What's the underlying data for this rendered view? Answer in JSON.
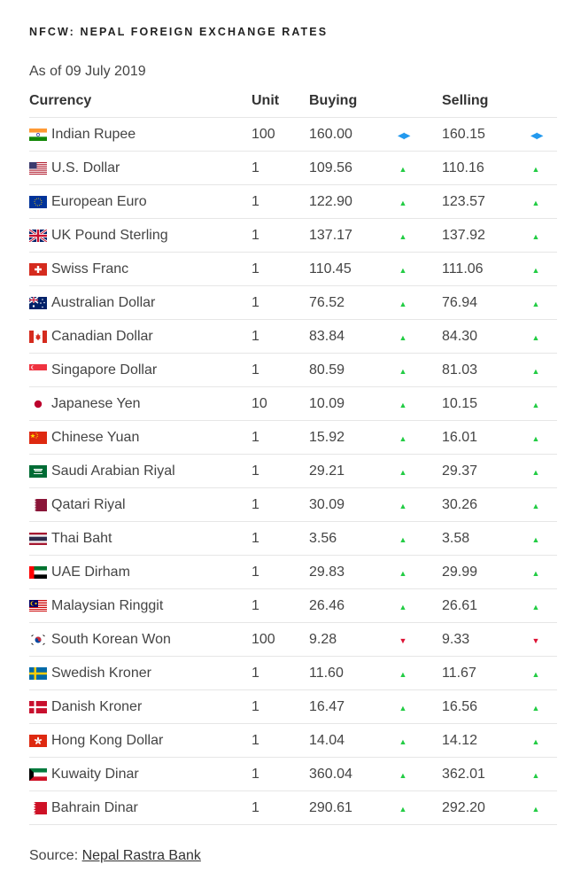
{
  "title": "NFCW: NEPAL FOREIGN EXCHANGE RATES",
  "as_of": "As of 09 July 2019",
  "headers": {
    "currency": "Currency",
    "unit": "Unit",
    "buying": "Buying",
    "selling": "Selling"
  },
  "trend_glyphs": {
    "up": "▲",
    "down": "▼",
    "same": "◀▶"
  },
  "colors": {
    "up": "#22cc44",
    "down": "#dd1133",
    "same": "#2299ee"
  },
  "rows": [
    {
      "name": "Indian Rupee",
      "unit": "100",
      "buying": "160.00",
      "selling": "160.15",
      "trend": "same",
      "flag": "india-flag-icon"
    },
    {
      "name": "U.S. Dollar",
      "unit": "1",
      "buying": "109.56",
      "selling": "110.16",
      "trend": "up",
      "flag": "usa-flag-icon"
    },
    {
      "name": "European Euro",
      "unit": "1",
      "buying": "122.90",
      "selling": "123.57",
      "trend": "up",
      "flag": "eu-flag-icon"
    },
    {
      "name": "UK Pound Sterling",
      "unit": "1",
      "buying": "137.17",
      "selling": "137.92",
      "trend": "up",
      "flag": "uk-flag-icon"
    },
    {
      "name": "Swiss Franc",
      "unit": "1",
      "buying": "110.45",
      "selling": "111.06",
      "trend": "up",
      "flag": "swiss-flag-icon"
    },
    {
      "name": "Australian Dollar",
      "unit": "1",
      "buying": "76.52",
      "selling": "76.94",
      "trend": "up",
      "flag": "australia-flag-icon"
    },
    {
      "name": "Canadian Dollar",
      "unit": "1",
      "buying": "83.84",
      "selling": "84.30",
      "trend": "up",
      "flag": "canada-flag-icon"
    },
    {
      "name": "Singapore Dollar",
      "unit": "1",
      "buying": "80.59",
      "selling": "81.03",
      "trend": "up",
      "flag": "singapore-flag-icon"
    },
    {
      "name": "Japanese Yen",
      "unit": "10",
      "buying": "10.09",
      "selling": "10.15",
      "trend": "up",
      "flag": "japan-flag-icon"
    },
    {
      "name": "Chinese Yuan",
      "unit": "1",
      "buying": "15.92",
      "selling": "16.01",
      "trend": "up",
      "flag": "china-flag-icon"
    },
    {
      "name": "Saudi Arabian Riyal",
      "unit": "1",
      "buying": "29.21",
      "selling": "29.37",
      "trend": "up",
      "flag": "saudi-flag-icon"
    },
    {
      "name": "Qatari Riyal",
      "unit": "1",
      "buying": "30.09",
      "selling": "30.26",
      "trend": "up",
      "flag": "qatar-flag-icon"
    },
    {
      "name": "Thai Baht",
      "unit": "1",
      "buying": "3.56",
      "selling": "3.58",
      "trend": "up",
      "flag": "thailand-flag-icon"
    },
    {
      "name": "UAE Dirham",
      "unit": "1",
      "buying": "29.83",
      "selling": "29.99",
      "trend": "up",
      "flag": "uae-flag-icon"
    },
    {
      "name": "Malaysian Ringgit",
      "unit": "1",
      "buying": "26.46",
      "selling": "26.61",
      "trend": "up",
      "flag": "malaysia-flag-icon"
    },
    {
      "name": "South Korean Won",
      "unit": "100",
      "buying": "9.28",
      "selling": "9.33",
      "trend": "down",
      "flag": "korea-flag-icon"
    },
    {
      "name": "Swedish Kroner",
      "unit": "1",
      "buying": "11.60",
      "selling": "11.67",
      "trend": "up",
      "flag": "sweden-flag-icon"
    },
    {
      "name": "Danish Kroner",
      "unit": "1",
      "buying": "16.47",
      "selling": "16.56",
      "trend": "up",
      "flag": "denmark-flag-icon"
    },
    {
      "name": "Hong Kong Dollar",
      "unit": "1",
      "buying": "14.04",
      "selling": "14.12",
      "trend": "up",
      "flag": "hongkong-flag-icon"
    },
    {
      "name": "Kuwaity Dinar",
      "unit": "1",
      "buying": "360.04",
      "selling": "362.01",
      "trend": "up",
      "flag": "kuwait-flag-icon"
    },
    {
      "name": "Bahrain Dinar",
      "unit": "1",
      "buying": "290.61",
      "selling": "292.20",
      "trend": "up",
      "flag": "bahrain-flag-icon"
    }
  ],
  "source": {
    "label": "Source:",
    "link_text": "Nepal Rastra Bank"
  }
}
